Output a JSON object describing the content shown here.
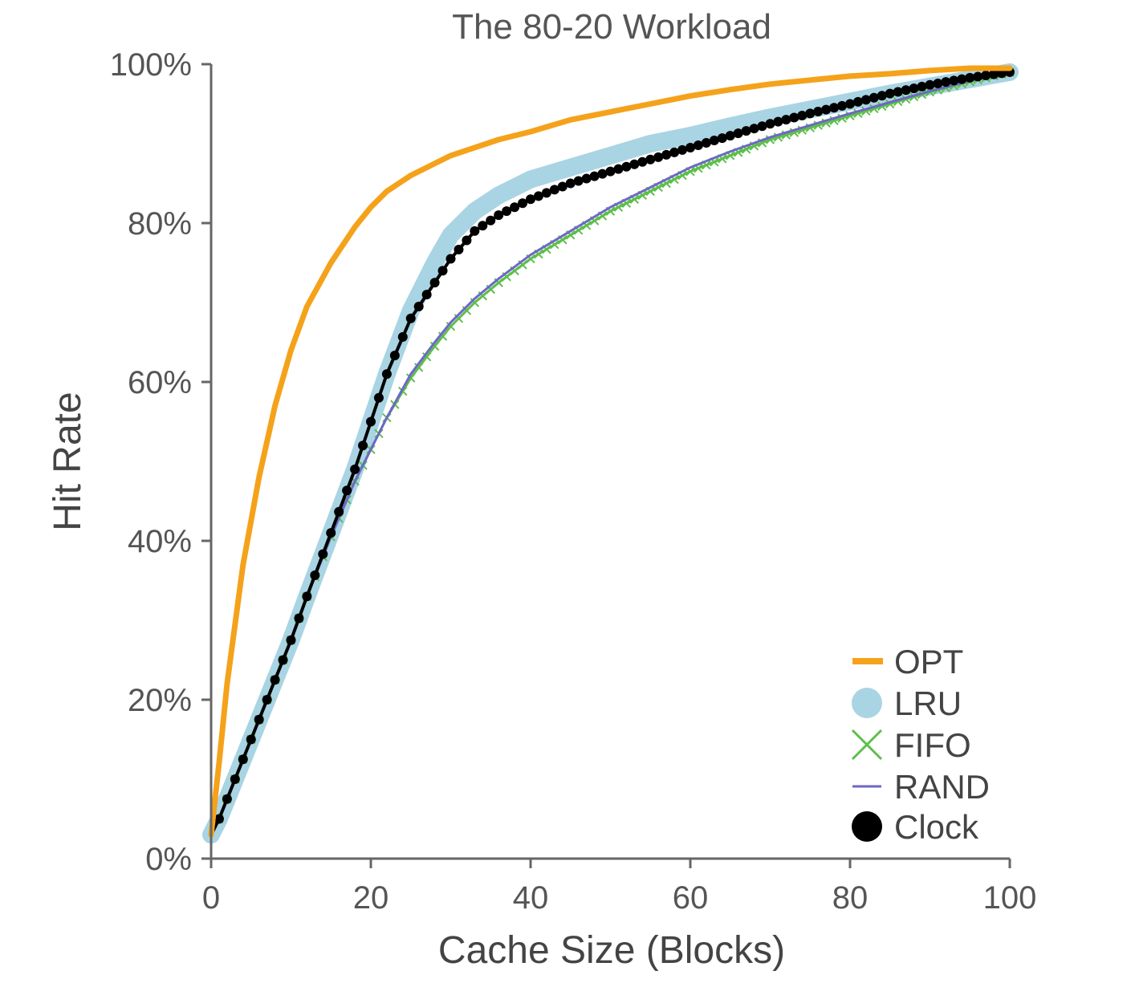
{
  "chart_data": {
    "type": "line",
    "title": "The 80-20 Workload",
    "xlabel": "Cache Size (Blocks)",
    "ylabel": "Hit Rate",
    "xlim": [
      0,
      100
    ],
    "ylim": [
      0,
      100
    ],
    "xticks": [
      "0",
      "20",
      "40",
      "60",
      "80",
      "100"
    ],
    "yticks": [
      "0%",
      "20%",
      "40%",
      "60%",
      "80%",
      "100%"
    ],
    "grid": false,
    "legend_position": "bottom-right",
    "colors": {
      "OPT": "#f5a21b",
      "LRU": "#a9d4e4",
      "FIFO": "#5cbf4a",
      "RAND": "#6f66c8",
      "Clock": "#000000"
    },
    "x": [
      0,
      1,
      2,
      4,
      6,
      8,
      10,
      12,
      15,
      18,
      20,
      22,
      25,
      28,
      30,
      33,
      36,
      40,
      45,
      50,
      55,
      60,
      65,
      70,
      75,
      80,
      85,
      90,
      95,
      100
    ],
    "series": [
      {
        "name": "OPT",
        "values": [
          3,
          12,
          22,
          37,
          48,
          57,
          64,
          69.5,
          75,
          79.5,
          82,
          84,
          86,
          87.5,
          88.5,
          89.5,
          90.5,
          91.5,
          93,
          94,
          95,
          96,
          96.8,
          97.5,
          98,
          98.5,
          98.8,
          99.2,
          99.5,
          99.5
        ]
      },
      {
        "name": "LRU",
        "values": [
          3,
          5,
          7.5,
          12.5,
          17.5,
          22.5,
          27.5,
          33,
          41,
          49,
          55,
          61,
          69,
          75,
          78.5,
          81.5,
          83.5,
          85.5,
          87,
          88.5,
          90,
          91,
          92.2,
          93.3,
          94.3,
          95.3,
          96.3,
          97.2,
          98.1,
          99
        ]
      },
      {
        "name": "FIFO",
        "values": [
          3,
          5,
          7.5,
          12.5,
          17.5,
          22.5,
          27.5,
          33,
          40.5,
          47.5,
          51.5,
          55.5,
          60.5,
          64.5,
          67,
          70,
          72.5,
          75.5,
          78.5,
          81.5,
          84,
          86.5,
          88.5,
          90.5,
          92,
          93.5,
          95,
          96.5,
          97.8,
          99
        ]
      },
      {
        "name": "RAND",
        "values": [
          3,
          5,
          7.5,
          12.5,
          17.5,
          22.5,
          27.5,
          33,
          40.5,
          47.5,
          51.5,
          55.5,
          61,
          65,
          67.5,
          70.5,
          73,
          76,
          79,
          82,
          84.5,
          87,
          89,
          90.8,
          92.3,
          93.8,
          95.2,
          96.6,
          97.9,
          99
        ]
      },
      {
        "name": "Clock",
        "values": [
          3,
          5,
          7.5,
          12.5,
          17.5,
          22.5,
          27.5,
          33,
          41,
          49,
          55,
          61,
          68,
          72.5,
          75.5,
          79,
          81,
          83,
          85,
          86.5,
          88,
          89.5,
          91,
          92.5,
          93.8,
          95,
          96.3,
          97.4,
          98.3,
          99
        ]
      }
    ]
  }
}
